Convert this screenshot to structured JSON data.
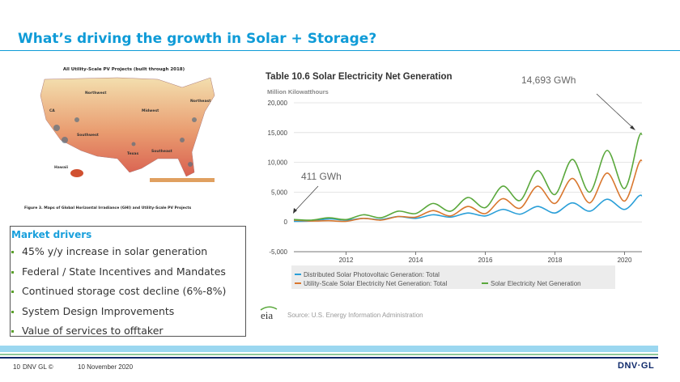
{
  "slide": {
    "title": "What’s driving the growth in Solar + Storage?",
    "page_number": "10",
    "copyright": "DNV GL ©",
    "date": "10 November 2020",
    "logo": "DNV·GL",
    "brand_color": "#0f9bd7"
  },
  "map_figure": {
    "title": "All Utility-Scale PV Projects (built through 2018)",
    "regions": [
      "Northwest",
      "CA",
      "Midwest",
      "Northeast",
      "Southwest",
      "Texas",
      "Southeast",
      "Hawaii"
    ],
    "caption": "Figure 3. Maps of Global Horizontal Irradiance (GHI) and Utility-Scale PV Projects"
  },
  "drivers": {
    "heading": "Market drivers",
    "items": [
      "45% y/y increase in solar generation",
      "Federal / State Incentives and Mandates",
      "Continued storage cost decline (6%-8%)",
      "System Design Improvements",
      "Value of services to offtaker"
    ]
  },
  "chart_data": {
    "type": "line",
    "title": "Table 10.6 Solar Electricity Net Generation",
    "ylabel": "Million Kilowatthours",
    "xlabel": "",
    "ylim": [
      -5000,
      20000
    ],
    "xlim": [
      2010.5,
      2020.5
    ],
    "yticks": [
      "20,000",
      "15,000",
      "10,000",
      "5,000",
      "0",
      "-5,000"
    ],
    "xticks": [
      "2012",
      "2014",
      "2016",
      "2018",
      "2020"
    ],
    "grid": true,
    "legend_position": "bottom",
    "x": [
      2010.5,
      2011,
      2011.5,
      2012,
      2012.5,
      2013,
      2013.5,
      2014,
      2014.5,
      2015,
      2015.5,
      2016,
      2016.5,
      2017,
      2017.5,
      2018,
      2018.5,
      2019,
      2019.5,
      2020,
      2020.4,
      2020.5
    ],
    "series": [
      {
        "name": "Distributed Solar Photovoltaic Generation: Total",
        "color": "#2a9fd8",
        "values": [
          100,
          150,
          500,
          300,
          600,
          400,
          900,
          600,
          1200,
          800,
          1500,
          1000,
          2100,
          1300,
          2600,
          1500,
          3200,
          1800,
          3800,
          2100,
          4300,
          4400
        ]
      },
      {
        "name": "Utility-Scale Solar Electricity Net Generation: Total",
        "color": "#d9772e",
        "values": [
          300,
          150,
          200,
          100,
          600,
          300,
          900,
          800,
          1900,
          1000,
          2600,
          1400,
          3900,
          2300,
          6000,
          3100,
          7300,
          3200,
          8200,
          3500,
          9700,
          10300
        ]
      },
      {
        "name": "Solar Electricity Net Generation",
        "color": "#5aa83c",
        "values": [
          411,
          300,
          700,
          400,
          1200,
          700,
          1800,
          1400,
          3100,
          1800,
          4100,
          2400,
          6000,
          3600,
          8600,
          4600,
          10500,
          5000,
          12000,
          5600,
          14000,
          14693
        ]
      }
    ],
    "annotations": [
      "411 GWh",
      "14,693 GWh"
    ],
    "source": "Source: U.S. Energy Information Administration",
    "source_logo": "eia"
  }
}
